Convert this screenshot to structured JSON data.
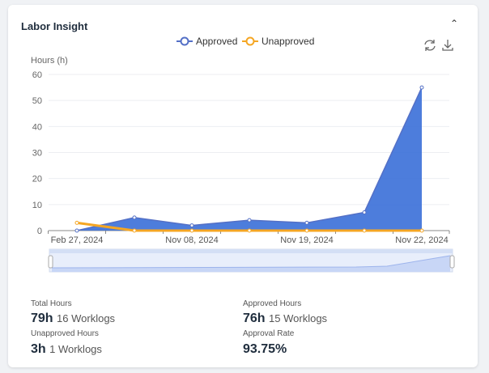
{
  "card": {
    "title": "Labor Insight"
  },
  "icons": {
    "collapse": "chevron-up-icon",
    "refresh": "refresh-icon",
    "download": "download-icon"
  },
  "chart_data": {
    "type": "area",
    "ylabel": "Hours (h)",
    "ylim": [
      0,
      60
    ],
    "yticks": [
      "0",
      "10",
      "20",
      "30",
      "40",
      "50",
      "60"
    ],
    "categories": [
      "Feb 27, 2024",
      "",
      "Nov 08, 2024",
      "",
      "Nov 19, 2024",
      "",
      "Nov 22, 2024"
    ],
    "legend_position": "top",
    "grid": true,
    "series": [
      {
        "name": "Approved",
        "color": "#5470c6",
        "fill": "#3a6fd8",
        "values": [
          0,
          5,
          2,
          4,
          3,
          7,
          55
        ]
      },
      {
        "name": "Unapproved",
        "color": "#f5a623",
        "values": [
          3,
          0,
          0,
          0,
          0,
          0,
          0
        ]
      }
    ]
  },
  "stats": {
    "total": {
      "label": "Total Hours",
      "value": "79h",
      "sub": "16 Worklogs"
    },
    "approved": {
      "label": "Approved Hours",
      "value": "76h",
      "sub": "15 Worklogs"
    },
    "unapproved": {
      "label": "Unapproved Hours",
      "value": "3h",
      "sub": "1 Worklogs"
    },
    "rate": {
      "label": "Approval Rate",
      "value": "93.75%"
    }
  }
}
